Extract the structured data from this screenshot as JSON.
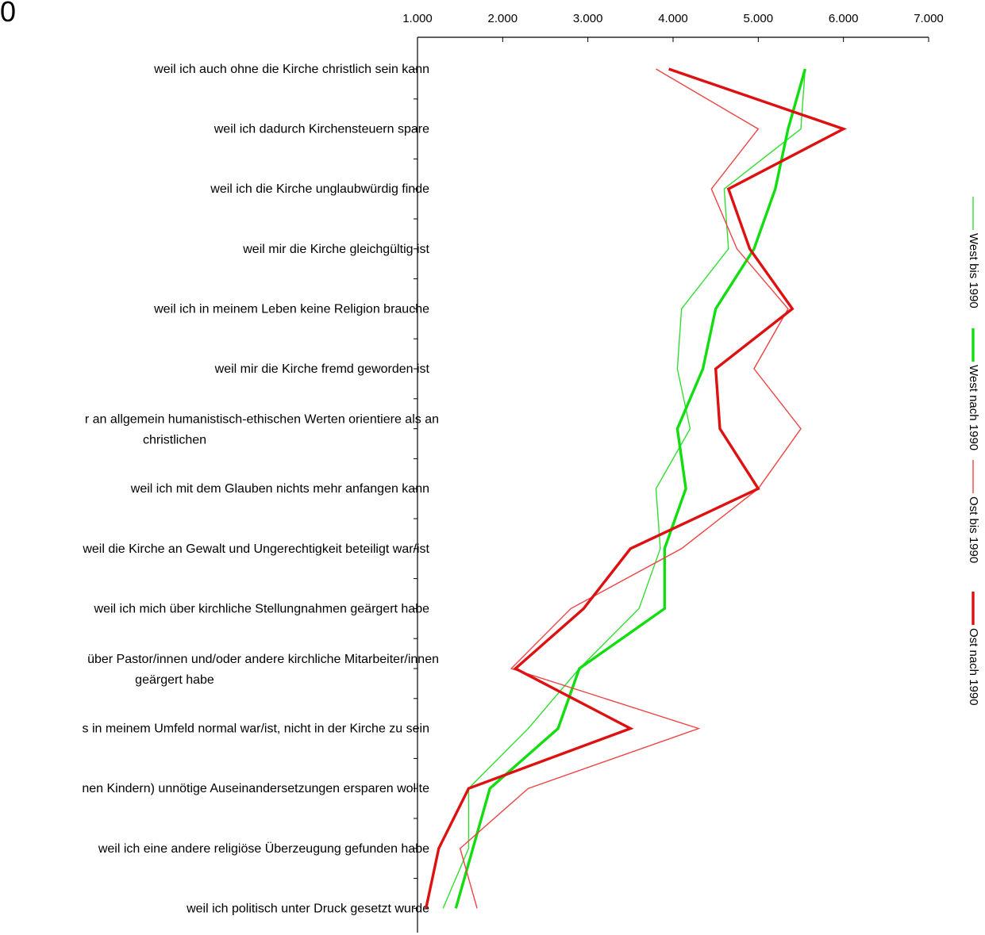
{
  "chart_data": {
    "type": "line",
    "orientation": "horizontal-values",
    "corner_text": "0",
    "x_ticks": [
      "1.000",
      "2.000",
      "3.000",
      "4.000",
      "5.000",
      "6.000",
      "7.000"
    ],
    "xlim": [
      1,
      7
    ],
    "x_axis_position": "top",
    "grid": false,
    "legend_position": "right, rotated vertical",
    "categories": [
      "weil ich auch ohne die Kirche christlich sein kann",
      "weil ich dadurch Kirchensteuern spare",
      "weil ich die Kirche unglaubwürdig finde",
      "weil mir die Kirche gleichgültig ist",
      "weil ich in meinem Leben keine Religion brauche",
      "weil mir die Kirche fremd geworden ist",
      "r an allgemein humanistisch-ethischen Werten orientiere als an christlichen",
      "weil ich mit dem Glauben nichts mehr anfangen kann",
      "weil die Kirche an Gewalt und Ungerechtigkeit beteiligt war/ist",
      "weil ich mich über kirchliche Stellungnahmen geärgert habe",
      "über Pastor/innen und/oder andere kirchliche Mitarbeiter/innen geärgert habe",
      "s in meinem Umfeld normal war/ist, nicht in der Kirche zu sein",
      "nen Kindern) unnötige Auseinandersetzungen ersparen wollte",
      "weil ich eine andere religiöse Überzeugung gefunden habe",
      "weil ich politisch unter Druck gesetzt wurde"
    ],
    "category_lines": [
      [
        "weil ich auch ohne die Kirche christlich sein kann"
      ],
      [
        "weil ich dadurch Kirchensteuern spare"
      ],
      [
        "weil ich die Kirche unglaubwürdig finde"
      ],
      [
        "weil mir die Kirche gleichgültig ist"
      ],
      [
        "weil ich in meinem Leben keine Religion brauche"
      ],
      [
        "weil mir die Kirche fremd geworden ist"
      ],
      [
        "r an allgemein humanistisch-ethischen Werten orientiere als an",
        "christlichen"
      ],
      [
        "weil ich mit dem Glauben nichts mehr anfangen kann"
      ],
      [
        "weil die Kirche an Gewalt und Ungerechtigkeit beteiligt war/ist"
      ],
      [
        "weil ich mich über kirchliche Stellungnahmen geärgert habe"
      ],
      [
        "über Pastor/innen und/oder andere kirchliche Mitarbeiter/innen",
        "geärgert habe"
      ],
      [
        "s in meinem Umfeld normal war/ist, nicht in der Kirche zu sein"
      ],
      [
        "nen Kindern) unnötige Auseinandersetzungen ersparen wollte"
      ],
      [
        "weil ich eine andere religiöse Überzeugung gefunden habe"
      ],
      [
        "weil ich politisch unter Druck gesetzt wurde"
      ]
    ],
    "series": [
      {
        "name": "West bis 1990",
        "color": "#33dd33",
        "style": "thin",
        "values": [
          5.55,
          5.5,
          4.6,
          4.65,
          4.1,
          4.05,
          4.2,
          3.8,
          3.85,
          3.6,
          2.9,
          2.3,
          1.6,
          1.6,
          1.3
        ]
      },
      {
        "name": "West nach 1990",
        "color": "#11dd11",
        "style": "thick",
        "values": [
          5.55,
          5.35,
          5.2,
          4.95,
          4.5,
          4.35,
          4.05,
          4.15,
          3.9,
          3.9,
          2.9,
          2.65,
          1.85,
          1.65,
          1.45
        ]
      },
      {
        "name": "Ost bis 1990",
        "color": "#ee4444",
        "style": "thin",
        "values": [
          3.8,
          5.0,
          4.45,
          4.75,
          5.35,
          4.95,
          5.5,
          5.0,
          4.1,
          2.8,
          2.1,
          4.3,
          2.3,
          1.5,
          1.7
        ]
      },
      {
        "name": "Ost nach 1990",
        "color": "#dd1111",
        "style": "thick",
        "values": [
          3.95,
          6.0,
          4.65,
          4.9,
          5.4,
          4.5,
          4.55,
          5.0,
          3.5,
          2.95,
          2.15,
          3.5,
          1.6,
          1.25,
          1.1
        ]
      }
    ]
  }
}
